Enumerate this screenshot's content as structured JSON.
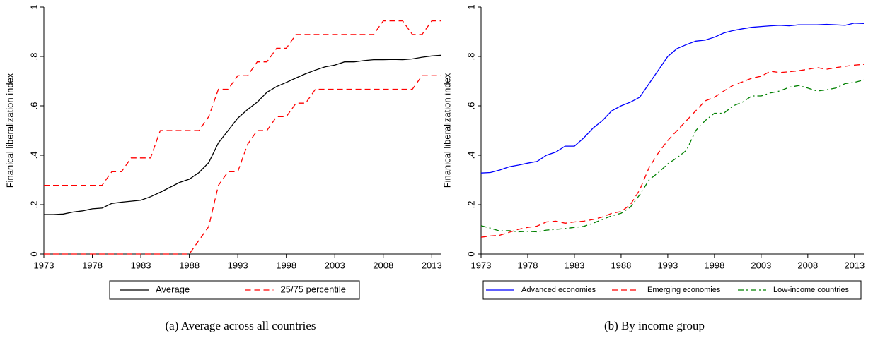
{
  "chart_data": [
    {
      "type": "line",
      "caption": "(a) Average across all countries",
      "ylabel": "Finanical liberalization index",
      "x": [
        1973,
        1974,
        1975,
        1976,
        1977,
        1978,
        1979,
        1980,
        1981,
        1982,
        1983,
        1984,
        1985,
        1986,
        1987,
        1988,
        1989,
        1990,
        1991,
        1992,
        1993,
        1994,
        1995,
        1996,
        1997,
        1998,
        1999,
        2000,
        2001,
        2002,
        2003,
        2004,
        2005,
        2006,
        2007,
        2008,
        2009,
        2010,
        2011,
        2012,
        2013,
        2014
      ],
      "series": [
        {
          "name": "Average",
          "color": "#000000",
          "dash": "solid",
          "values": [
            0.16,
            0.16,
            0.162,
            0.17,
            0.175,
            0.183,
            0.186,
            0.205,
            0.21,
            0.214,
            0.218,
            0.232,
            0.25,
            0.27,
            0.29,
            0.303,
            0.33,
            0.37,
            0.45,
            0.5,
            0.55,
            0.585,
            0.615,
            0.655,
            0.678,
            0.695,
            0.713,
            0.73,
            0.745,
            0.758,
            0.765,
            0.778,
            0.778,
            0.783,
            0.787,
            0.787,
            0.788,
            0.787,
            0.79,
            0.797,
            0.802,
            0.805
          ]
        },
        {
          "name": "25/75 percentile",
          "color": "#ff0000",
          "dash": "dashed",
          "upper": [
            0.278,
            0.278,
            0.278,
            0.278,
            0.278,
            0.278,
            0.278,
            0.333,
            0.333,
            0.389,
            0.389,
            0.389,
            0.5,
            0.5,
            0.5,
            0.5,
            0.5,
            0.556,
            0.667,
            0.667,
            0.722,
            0.722,
            0.778,
            0.778,
            0.833,
            0.833,
            0.889,
            0.889,
            0.889,
            0.889,
            0.889,
            0.889,
            0.889,
            0.889,
            0.889,
            0.944,
            0.944,
            0.944,
            0.889,
            0.889,
            0.944,
            0.944
          ],
          "lower": [
            0,
            0,
            0,
            0,
            0,
            0,
            0,
            0,
            0,
            0,
            0,
            0,
            0,
            0,
            0,
            0,
            0.056,
            0.111,
            0.278,
            0.333,
            0.333,
            0.444,
            0.5,
            0.5,
            0.556,
            0.556,
            0.611,
            0.611,
            0.667,
            0.667,
            0.667,
            0.667,
            0.667,
            0.667,
            0.667,
            0.667,
            0.667,
            0.667,
            0.667,
            0.722,
            0.722,
            0.722
          ]
        }
      ],
      "xlim": [
        1973,
        2014
      ],
      "ylim": [
        0,
        1
      ],
      "xticks": [
        1973,
        1978,
        1983,
        1988,
        1993,
        1998,
        2003,
        2008,
        2013
      ],
      "yticks": [
        0,
        {
          "value": 0.2,
          "label": ".2"
        },
        {
          "value": 0.4,
          "label": ".4"
        },
        {
          "value": 0.6,
          "label": ".6"
        },
        {
          "value": 0.8,
          "label": ".8"
        },
        1
      ]
    },
    {
      "type": "line",
      "caption": "(b) By income group",
      "ylabel": "Finanical liberalization index",
      "x": [
        1973,
        1974,
        1975,
        1976,
        1977,
        1978,
        1979,
        1980,
        1981,
        1982,
        1983,
        1984,
        1985,
        1986,
        1987,
        1988,
        1989,
        1990,
        1991,
        1992,
        1993,
        1994,
        1995,
        1996,
        1997,
        1998,
        1999,
        2000,
        2001,
        2002,
        2003,
        2004,
        2005,
        2006,
        2007,
        2008,
        2009,
        2010,
        2011,
        2012,
        2013,
        2014
      ],
      "series": [
        {
          "name": "Advanced economies",
          "color": "#0000ff",
          "dash": "solid",
          "values": [
            0.328,
            0.33,
            0.34,
            0.353,
            0.36,
            0.368,
            0.375,
            0.4,
            0.413,
            0.437,
            0.437,
            0.47,
            0.51,
            0.54,
            0.58,
            0.6,
            0.615,
            0.635,
            0.69,
            0.745,
            0.8,
            0.832,
            0.848,
            0.862,
            0.866,
            0.878,
            0.895,
            0.905,
            0.912,
            0.918,
            0.921,
            0.924,
            0.926,
            0.924,
            0.928,
            0.928,
            0.928,
            0.93,
            0.928,
            0.926,
            0.935,
            0.933
          ]
        },
        {
          "name": "Emerging economies",
          "color": "#ff0000",
          "dash": "dashed",
          "values": [
            0.068,
            0.073,
            0.076,
            0.088,
            0.1,
            0.108,
            0.113,
            0.13,
            0.133,
            0.125,
            0.13,
            0.133,
            0.14,
            0.15,
            0.165,
            0.172,
            0.2,
            0.26,
            0.35,
            0.41,
            0.46,
            0.5,
            0.54,
            0.58,
            0.62,
            0.635,
            0.66,
            0.683,
            0.697,
            0.712,
            0.72,
            0.74,
            0.735,
            0.738,
            0.742,
            0.748,
            0.755,
            0.748,
            0.755,
            0.76,
            0.765,
            0.768
          ]
        },
        {
          "name": "Low-income countries",
          "color": "#008000",
          "dash": "dashdot",
          "values": [
            0.115,
            0.105,
            0.093,
            0.095,
            0.09,
            0.092,
            0.09,
            0.097,
            0.1,
            0.103,
            0.108,
            0.112,
            0.125,
            0.14,
            0.155,
            0.165,
            0.19,
            0.24,
            0.3,
            0.33,
            0.365,
            0.39,
            0.42,
            0.5,
            0.54,
            0.57,
            0.57,
            0.6,
            0.615,
            0.64,
            0.64,
            0.652,
            0.66,
            0.675,
            0.682,
            0.672,
            0.66,
            0.665,
            0.672,
            0.69,
            0.695,
            0.705
          ]
        }
      ],
      "xlim": [
        1973,
        2014
      ],
      "ylim": [
        0,
        1
      ],
      "xticks": [
        1973,
        1978,
        1983,
        1988,
        1993,
        1998,
        2003,
        2008,
        2013
      ],
      "yticks": [
        0,
        {
          "value": 0.2,
          "label": ".2"
        },
        {
          "value": 0.4,
          "label": ".4"
        },
        {
          "value": 0.6,
          "label": ".6"
        },
        {
          "value": 0.8,
          "label": ".8"
        },
        1
      ]
    }
  ]
}
